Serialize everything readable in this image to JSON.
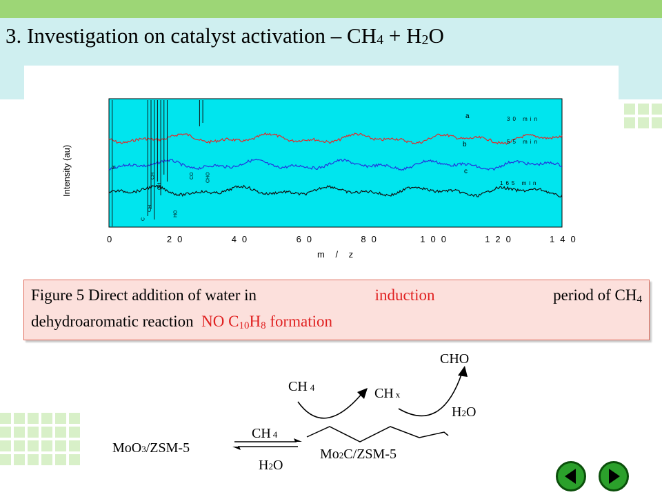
{
  "slide": {
    "title": "3. Investigation  on catalyst activation – CH",
    "title_sub1": "4",
    "title_plus": " + H",
    "title_sub2": "2",
    "title_end": "O"
  },
  "chart_data": {
    "type": "line",
    "title": "",
    "xlabel": "m / z",
    "ylabel": "Intensity (au)",
    "xlim": [
      0,
      140
    ],
    "xticks": [
      "0",
      "20",
      "40",
      "60",
      "80",
      "100",
      "120",
      "140"
    ],
    "series": [
      {
        "name": "a",
        "time_label": "30 min",
        "color": "#e02a2a",
        "offset": 88
      },
      {
        "name": "b",
        "time_label": "55 min",
        "color": "#2233dd",
        "offset": 50
      },
      {
        "name": "c",
        "time_label": "165 min",
        "color": "#111111",
        "offset": 12
      }
    ],
    "peak_labels": [
      "H",
      "C",
      "CH",
      "CH",
      "OH",
      "HO",
      "CO",
      "CHO"
    ],
    "background": "#00e5ee"
  },
  "caption": {
    "prefix": "Figure 5    Direct  addition  of  water  in",
    "induction": "induction",
    "mid": "period  of  CH",
    "mid_sub": "4",
    "line2": "dehydroaromatic reaction",
    "no_formation": "NO C",
    "sub10": "10",
    "h": "H",
    "sub8": "8",
    "formation": " formation"
  },
  "scheme": {
    "reactant": "MoO",
    "reactant_sub": "3",
    "reactant_tail": "/ZSM-5",
    "arrow_top": "CH",
    "arrow_top_sub": "4",
    "arrow_bottom": "H",
    "arrow_bottom_sub": "2",
    "arrow_bottom_tail": "O",
    "product": "Mo",
    "product_sub": "2",
    "product_tail": "C/ZSM-5",
    "ch4": "CH",
    "ch4_sub": "4",
    "chx": "CH",
    "chx_sub": "x",
    "cho": "CHO",
    "h2o": "H",
    "h2o_sub": "2",
    "h2o_tail": "O"
  },
  "nav": {
    "prev_icon": "triangle-left-icon",
    "next_icon": "triangle-right-icon"
  }
}
